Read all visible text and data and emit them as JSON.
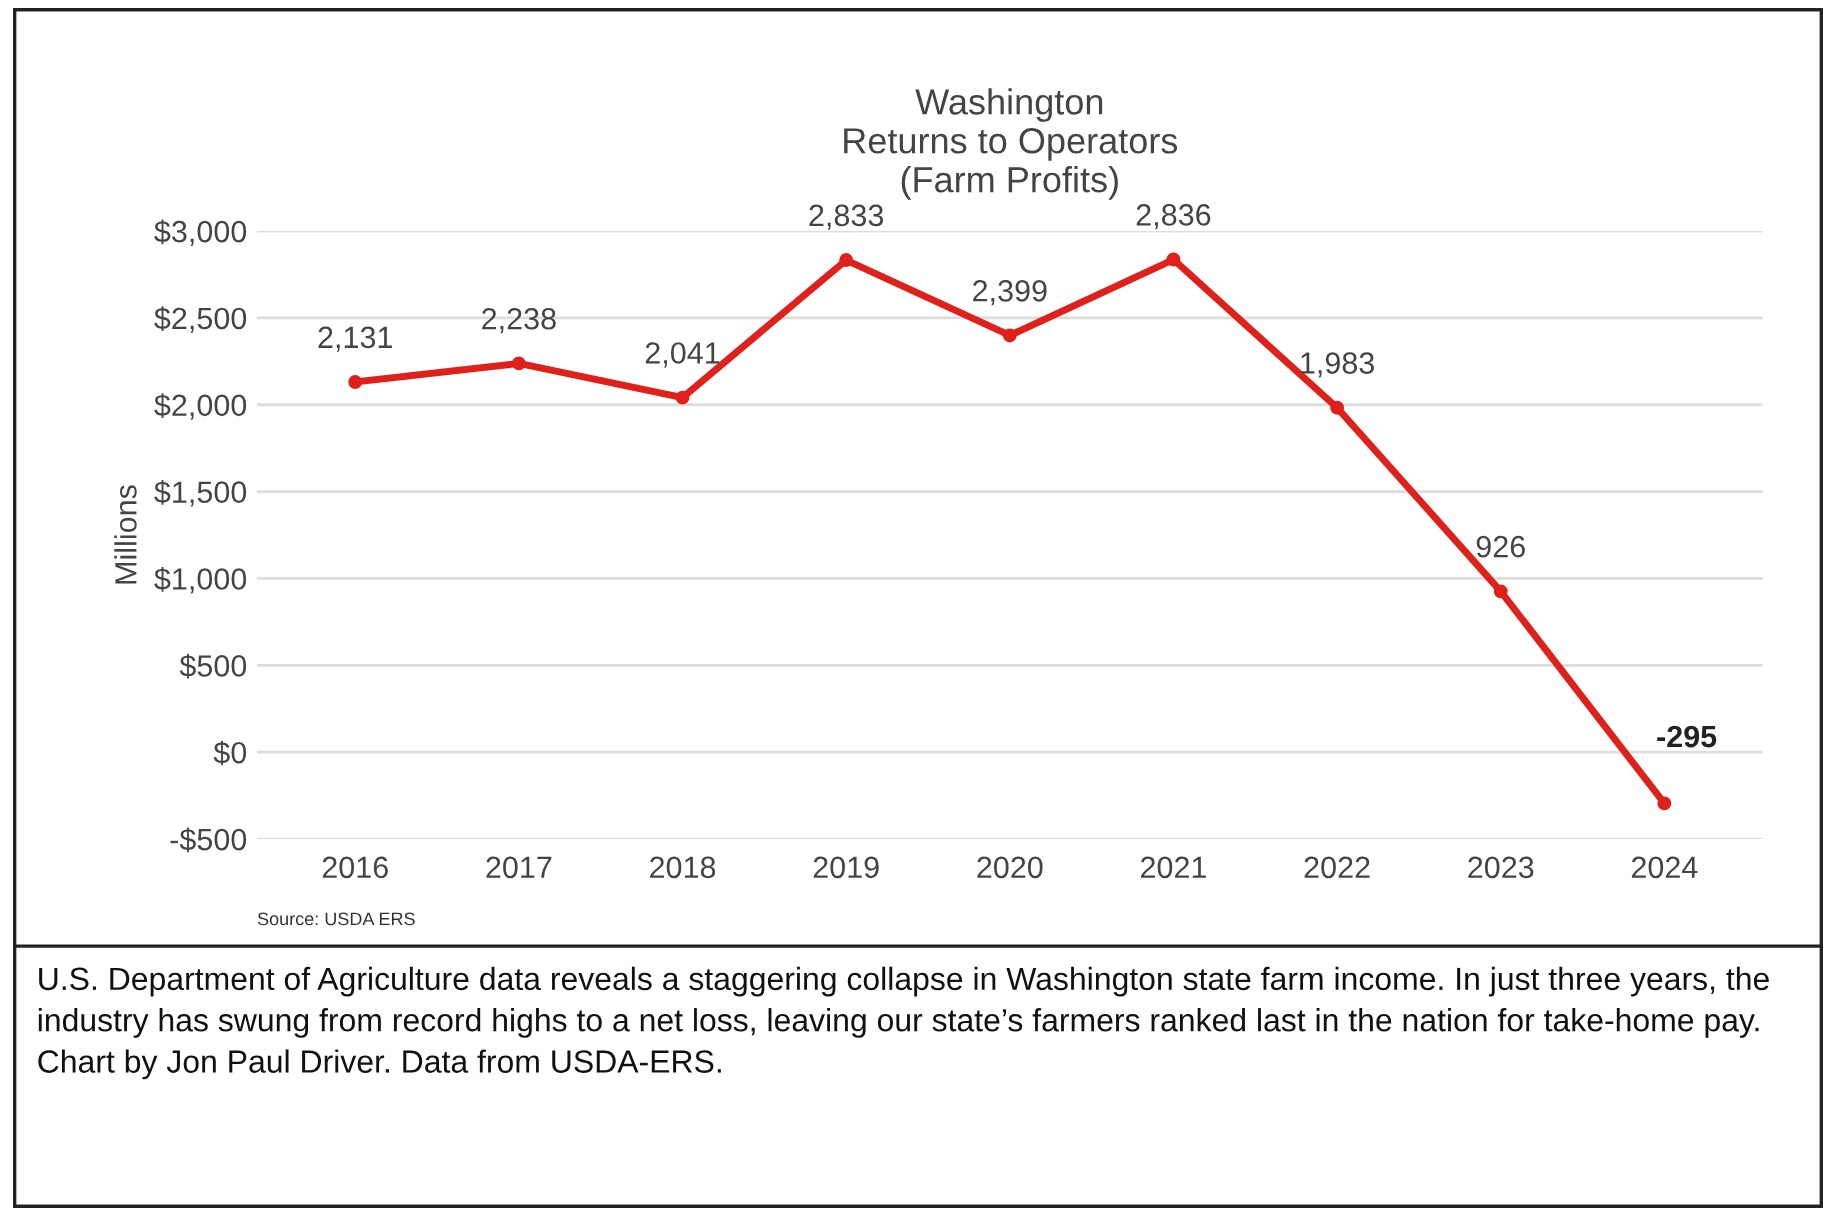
{
  "chart_data": {
    "type": "line",
    "title": "Washington\nReturns to Operators\n(Farm Profits)",
    "ylabel": "Millions",
    "categories": [
      "2016",
      "2017",
      "2018",
      "2019",
      "2020",
      "2021",
      "2022",
      "2023",
      "2024"
    ],
    "series": [
      {
        "color": "#e0201b",
        "values": [
          2131,
          2238,
          2041,
          2833,
          2399,
          2836,
          1983,
          926,
          -295
        ],
        "value_labels": [
          "2,131",
          "2,238",
          "2,041",
          "2,833",
          "2,399",
          "2,836",
          "1,983",
          "926",
          "-295"
        ]
      }
    ],
    "ylim": [
      -500,
      3000
    ],
    "yticks": [
      {
        "value": -500,
        "label": "-$500"
      },
      {
        "value": 0,
        "label": "$0"
      },
      {
        "value": 500,
        "label": "$500"
      },
      {
        "value": 1000,
        "label": "$1,000"
      },
      {
        "value": 1500,
        "label": "$1,500"
      },
      {
        "value": 2000,
        "label": "$2,000"
      },
      {
        "value": 2500,
        "label": "$2,500"
      },
      {
        "value": 3000,
        "label": "$3,000"
      }
    ],
    "grid": "y",
    "marker": "circle",
    "line_style": "solid",
    "annotations": [
      "Source: USDA ERS",
      "U.S. Department of Agriculture data reveals a staggering collapse in Washington state farm income. In just three years, the industry has swung from record highs to a net loss, leaving our state’s farmers ranked last in the nation for take-home pay. Chart by Jon Paul Driver. Data from USDA-ERS."
    ]
  }
}
